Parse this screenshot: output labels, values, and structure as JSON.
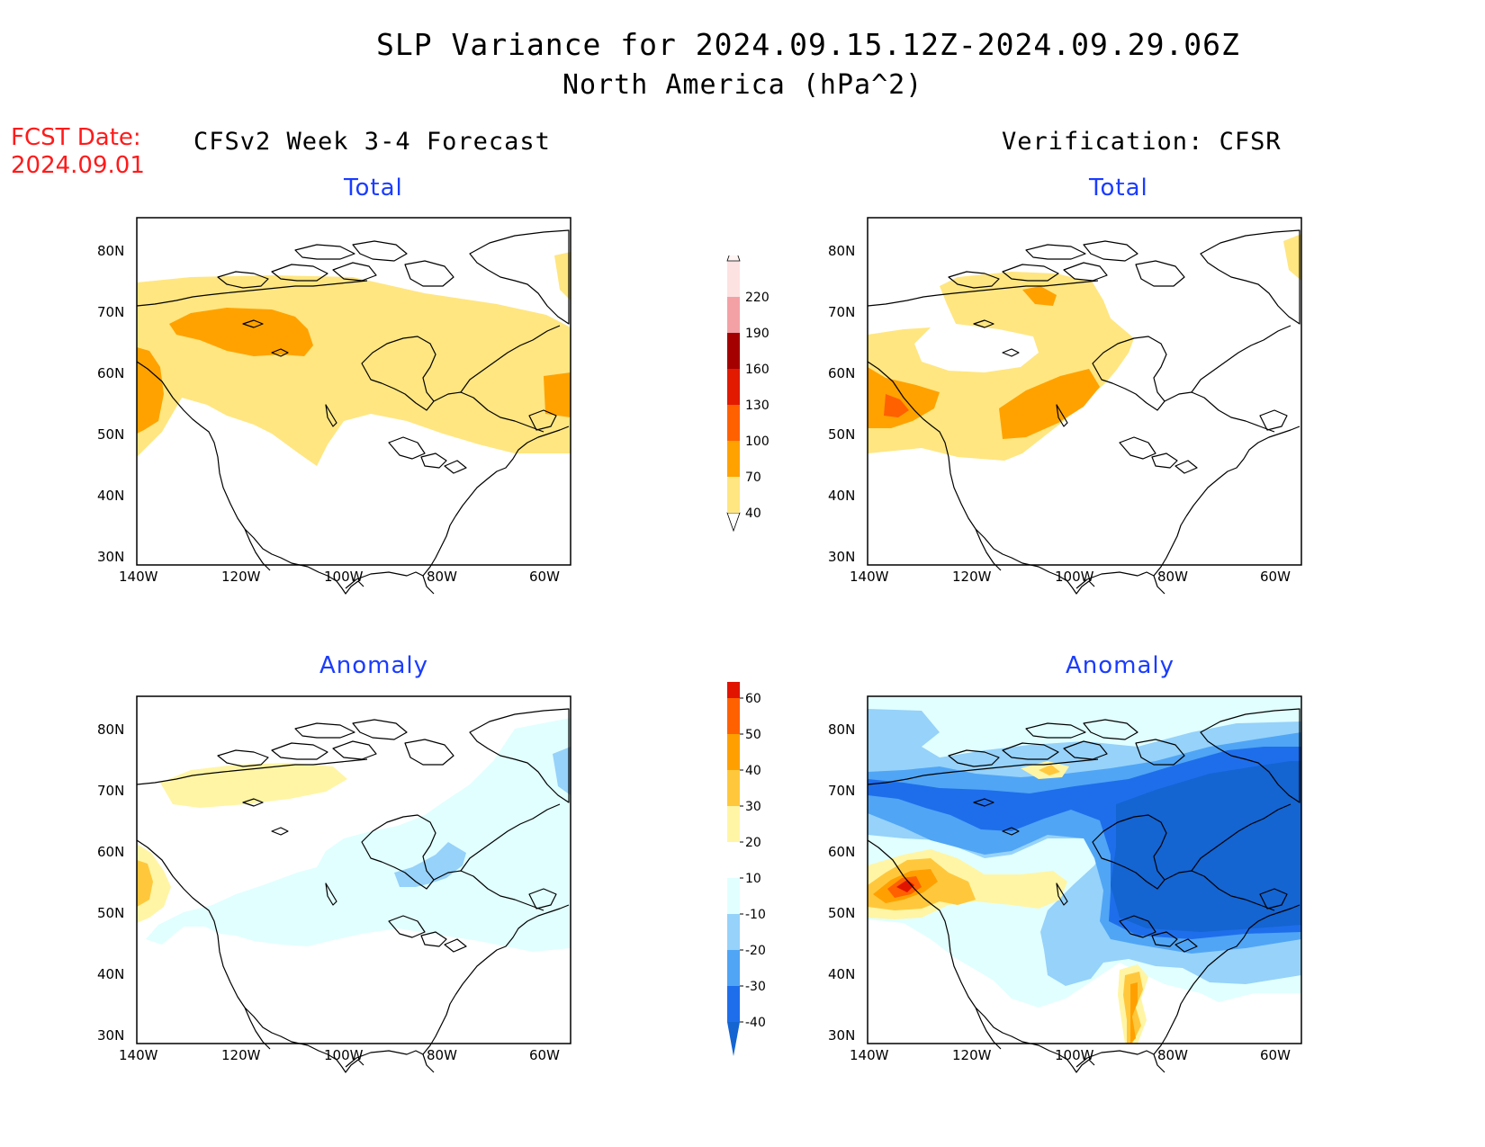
{
  "header": {
    "title": "SLP Variance for 2024.09.15.12Z-2024.09.29.06Z",
    "subtitle": "North America (hPa^2)"
  },
  "fcst_date": {
    "label": "FCST Date:",
    "value": "2024.09.01"
  },
  "columns": {
    "left": "CFSv2 Week 3-4 Forecast",
    "right": "Verification: CFSR"
  },
  "panels": {
    "forecast_total": {
      "title": "Total"
    },
    "verify_total": {
      "title": "Total"
    },
    "forecast_anomaly": {
      "title": "Anomaly"
    },
    "verify_anomaly": {
      "title": "Anomaly"
    }
  },
  "axes": {
    "lon_labels": [
      "140W",
      "120W",
      "100W",
      "80W",
      "60W"
    ],
    "lat_labels": [
      "80N",
      "70N",
      "60N",
      "50N",
      "40N",
      "30N"
    ]
  },
  "colorbars": {
    "total": {
      "levels": [
        "40",
        "70",
        "100",
        "130",
        "160",
        "190",
        "220"
      ],
      "colors": [
        "#ffe680",
        "#ffa200",
        "#ff6000",
        "#e11a00",
        "#a50000",
        "#f4a1a6",
        "#fde2e2"
      ]
    },
    "anomaly": {
      "levels": [
        "-40",
        "-30",
        "-20",
        "-10",
        "10",
        "20",
        "30",
        "40",
        "50",
        "60"
      ],
      "colors": [
        "#1464d2",
        "#1e6eeb",
        "#50a5f5",
        "#96d2fa",
        "#e1ffff",
        "#ffffff",
        "#fff5a5",
        "#ffc83c",
        "#ffa000",
        "#ff6000",
        "#e11400",
        "#a50000"
      ]
    }
  },
  "palette": {
    "total_40_70": "#ffe680",
    "total_70_100": "#ffa200",
    "total_100_130": "#ff6000",
    "anom_10_20": "#fff5a5",
    "anom_20_30": "#ffc83c",
    "anom_30_40": "#ffa000",
    "anom_40_50": "#ff6000",
    "anom_50_60": "#e11400",
    "anom_m10_m20": "#e1ffff",
    "anom_m20_m30": "#96d2fa",
    "anom_m30_m40": "#50a5f5",
    "anom_lt_m40": "#1e6eeb",
    "anom_deep": "#1464d2"
  }
}
